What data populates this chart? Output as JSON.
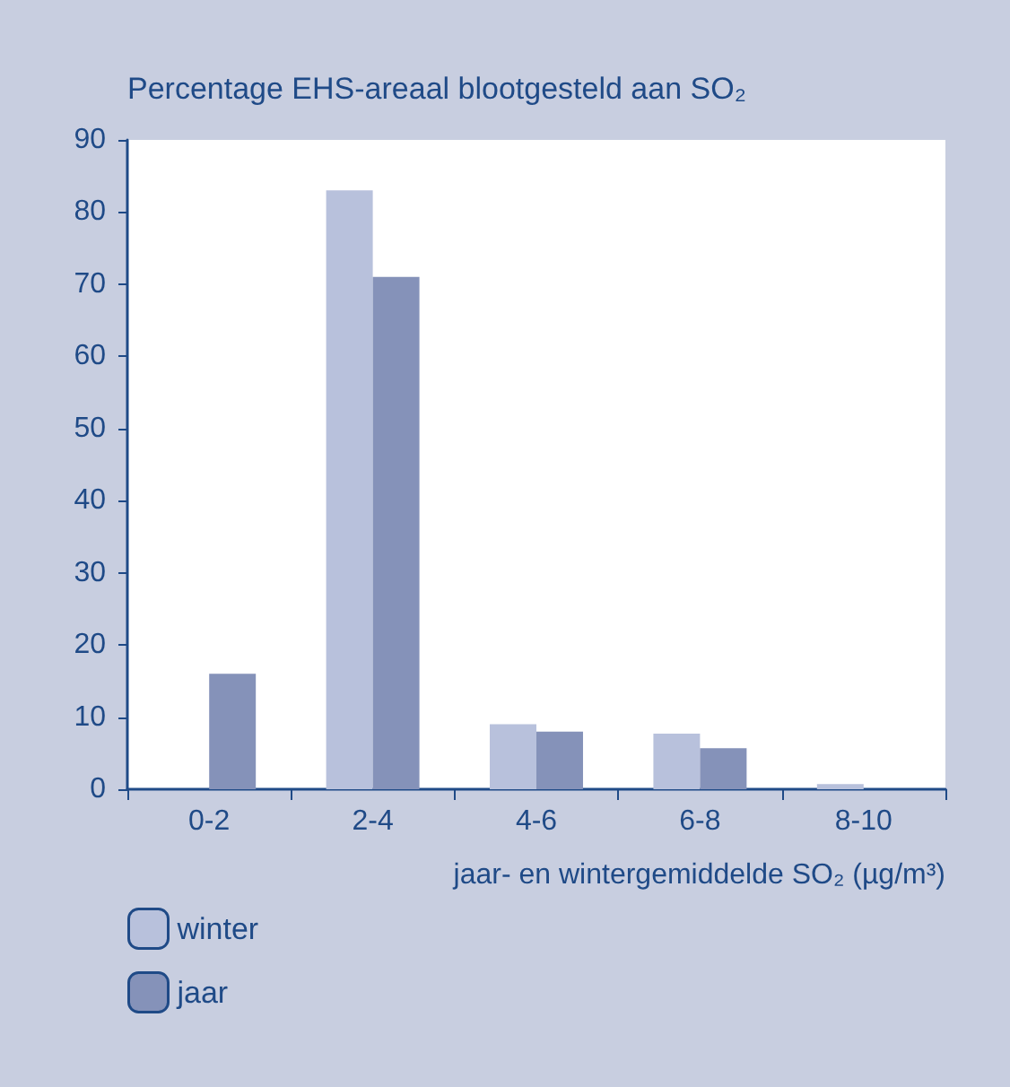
{
  "chart_data": {
    "type": "bar",
    "title": "Percentage EHS-areaal blootgesteld aan SO₂",
    "xlabel": "jaar- en wintergemiddelde SO₂ (µg/m³)",
    "categories": [
      "0-2",
      "2-4",
      "4-6",
      "6-8",
      "8-10"
    ],
    "series": [
      {
        "name": "winter",
        "color": "#b8c1dc",
        "values": [
          0,
          83,
          9,
          7.7,
          0.7
        ]
      },
      {
        "name": "jaar",
        "color": "#8592b9",
        "values": [
          16,
          71,
          8,
          5.7,
          0
        ]
      }
    ],
    "ylim": [
      0,
      90
    ],
    "yticks": [
      0,
      10,
      20,
      30,
      40,
      50,
      60,
      70,
      80,
      90
    ],
    "grid": false,
    "legend": "bottom left"
  }
}
